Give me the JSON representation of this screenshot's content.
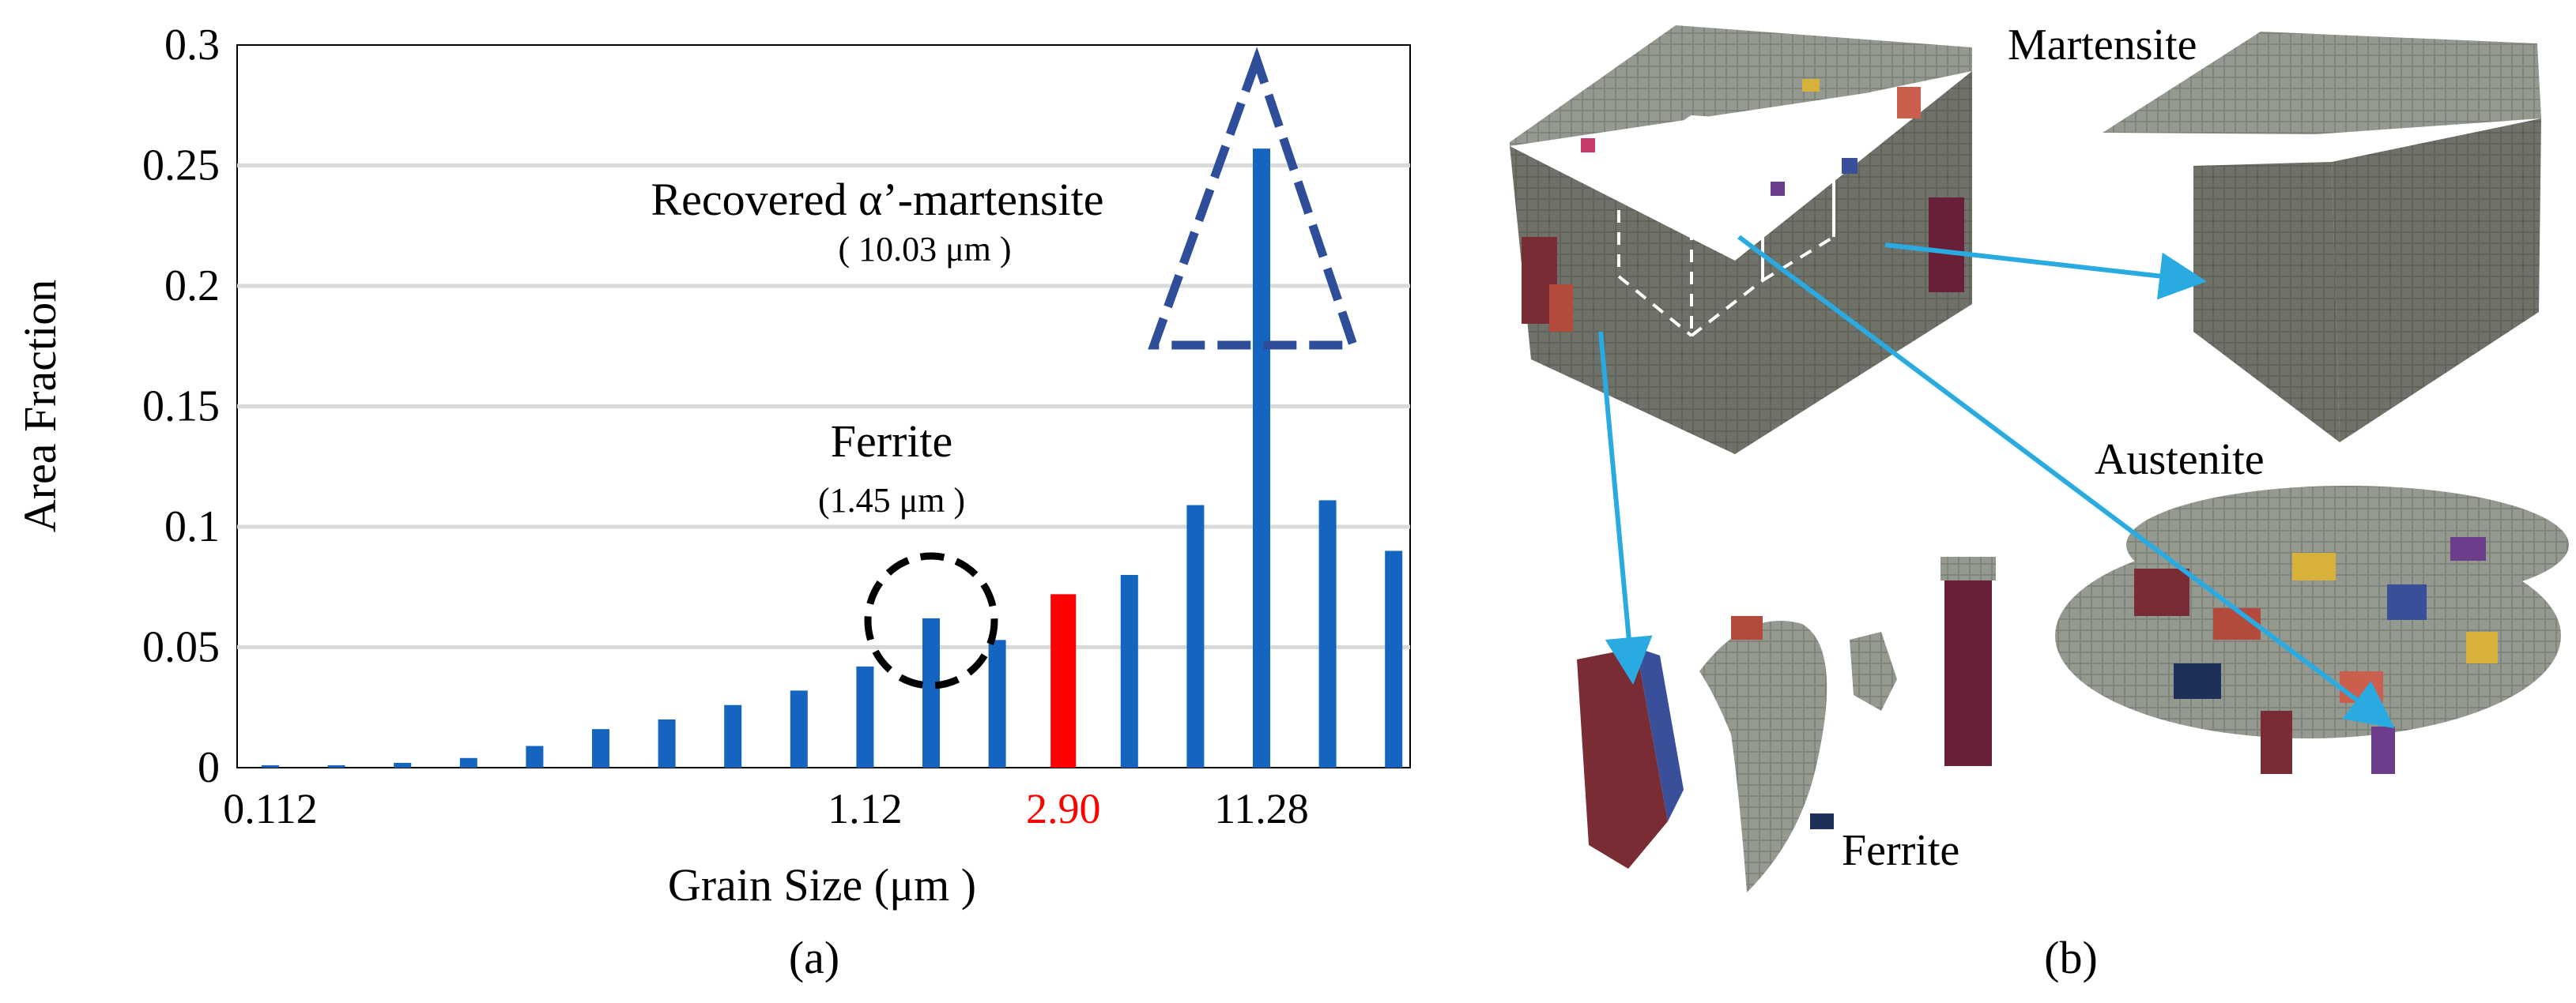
{
  "chart_data": {
    "type": "bar",
    "ylabel": "Area Fraction",
    "xlabel": "Grain Size (μm )",
    "ylim": [
      0,
      0.3
    ],
    "yticks": [
      "0",
      "0.05",
      "0.1",
      "0.15",
      "0.2",
      "0.25",
      "0.3"
    ],
    "ytick_values": [
      0,
      0.05,
      0.1,
      0.15,
      0.2,
      0.25,
      0.3
    ],
    "grid": true,
    "x_tick_labels": [
      {
        "text": "0.112",
        "bin": 0,
        "color": "#000000"
      },
      {
        "text": "1.12",
        "bin": 9,
        "color": "#000000"
      },
      {
        "text": "2.90",
        "bin": 12,
        "color": "#ff0000"
      },
      {
        "text": "11.28",
        "bin": 15,
        "color": "#000000"
      }
    ],
    "values": [
      0.001,
      0.001,
      0.002,
      0.004,
      0.009,
      0.016,
      0.02,
      0.026,
      0.032,
      0.042,
      0.062,
      0.053,
      0.072,
      0.08,
      0.109,
      0.257,
      0.111,
      0.09
    ],
    "highlight_bin": 12,
    "bar_color": "#1565C0",
    "highlight_color": "#ff0000",
    "annotations": {
      "ferrite": {
        "label": "Ferrite",
        "sub": "(1.45 μm )",
        "bin": 10
      },
      "martensite": {
        "label": "Recovered α’-martensite",
        "sub": "( 10.03 μm )",
        "bin": 15
      }
    },
    "panel_label": "(a)"
  },
  "panel_b": {
    "panel_label": "(b)",
    "labels": {
      "martensite": "Martensite",
      "austenite": "Austenite",
      "ferrite": "Ferrite"
    },
    "arrow_color": "#29ABE2"
  }
}
